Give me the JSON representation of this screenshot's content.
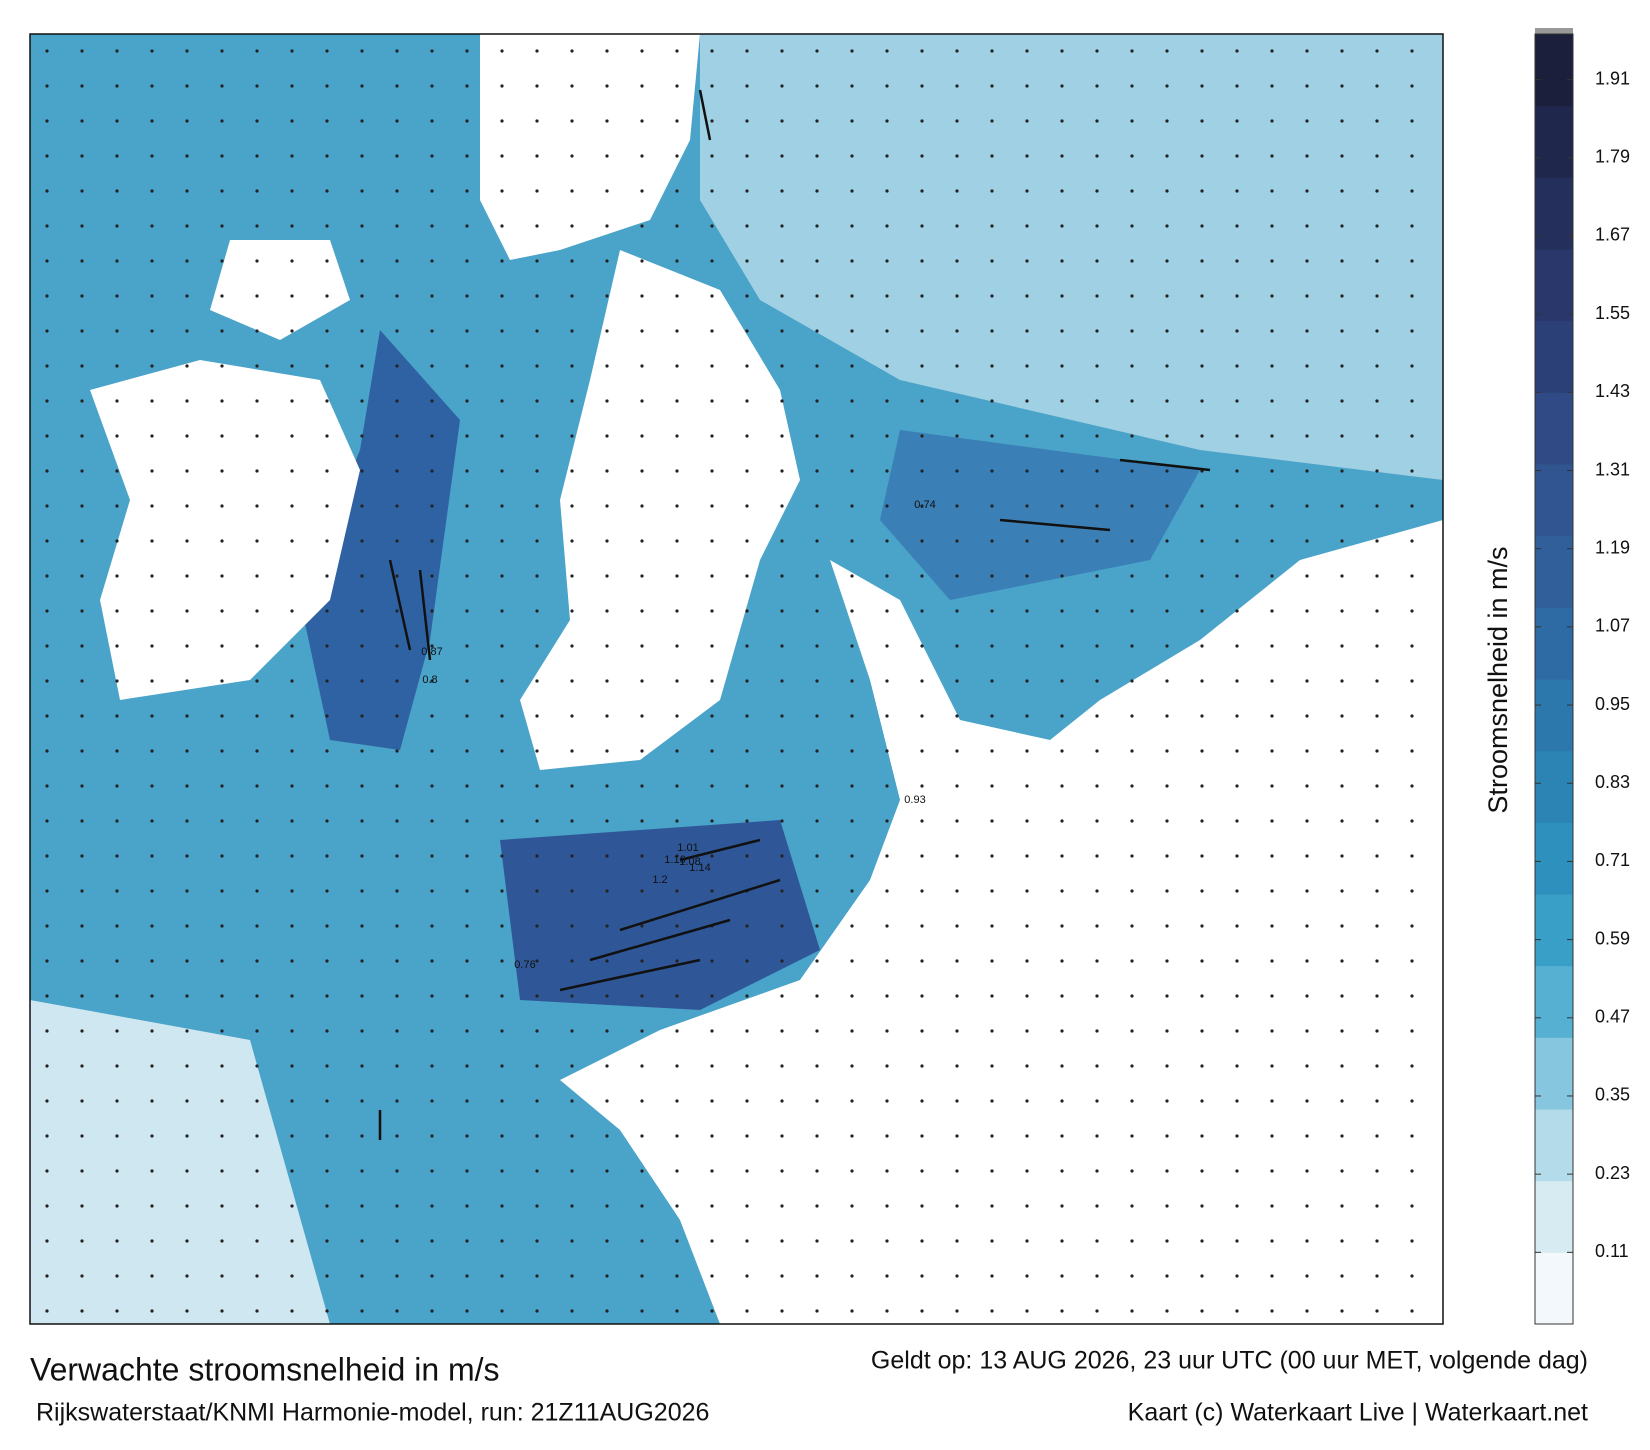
{
  "header": {
    "title": "Verwachte stroomsnelheid in m/s",
    "valid": "Geldt op: 13 AUG 2026, 23 uur UTC (00 uur MET, volgende dag)",
    "source": "Rijkswaterstaat/KNMI Harmonie-model, run: 21Z11AUG2026",
    "credit": "Kaart (c) Waterkaart Live | Waterkaart.net"
  },
  "chart_data": {
    "type": "colorbar",
    "label": "Stroomsnelheid in m/s",
    "ylim": [
      0,
      1.98
    ],
    "yticks": [
      0.11,
      0.23,
      0.35,
      0.47,
      0.59,
      0.71,
      0.83,
      0.95,
      1.07,
      1.19,
      1.31,
      1.43,
      1.55,
      1.67,
      1.79,
      1.91
    ],
    "colors": [
      "#f2f8fb",
      "#d6ebf2",
      "#b4dbe9",
      "#86c6de",
      "#55b0d2",
      "#3a9fc6",
      "#2e90bc",
      "#2b84b3",
      "#2c77ab",
      "#2e6aa3",
      "#305f9a",
      "#315590",
      "#2f4a85",
      "#2c4078",
      "#29376a",
      "#252f5c",
      "#20274c",
      "#1b1f3c"
    ]
  },
  "map": {
    "current_labels": [
      1.2,
      1.16,
      1.14,
      1.01,
      1.08,
      0.93,
      0.87,
      0.8,
      0.74,
      0.76
    ]
  }
}
